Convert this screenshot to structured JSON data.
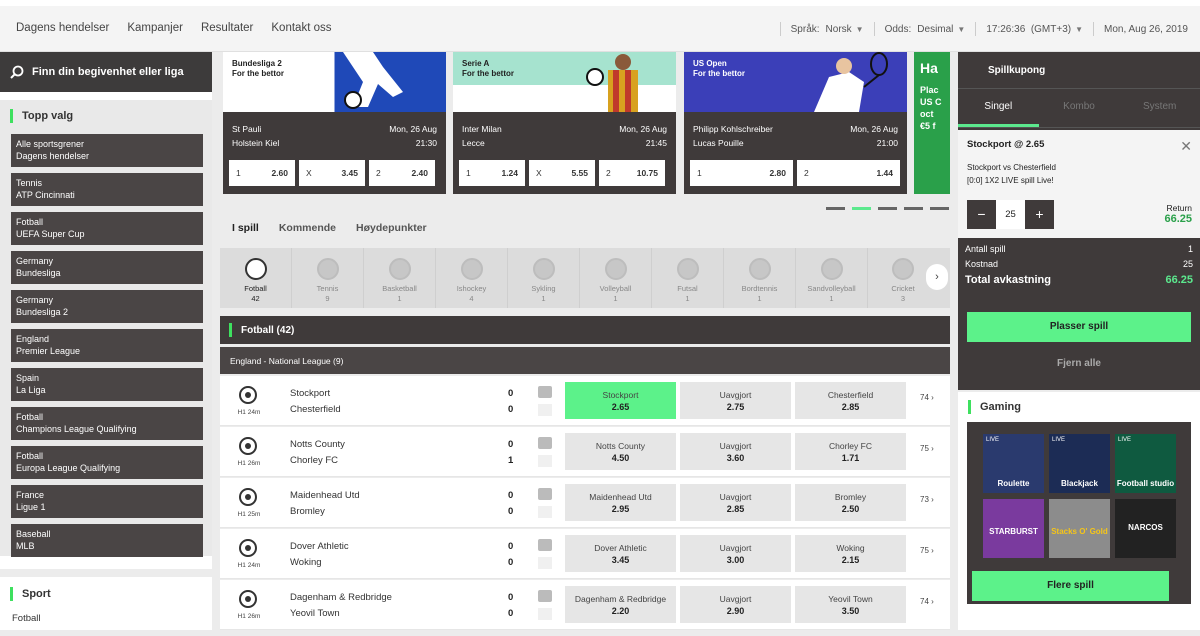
{
  "topnav": {
    "items": [
      "Dagens hendelser",
      "Kampanjer",
      "Resultater",
      "Kontakt oss"
    ]
  },
  "topright": {
    "lang_label": "Språk:",
    "lang_value": "Norsk",
    "odds_label": "Odds:",
    "odds_value": "Desimal",
    "time": "17:26:36",
    "tz": "(GMT+3)",
    "date": "Mon, Aug 26, 2019"
  },
  "search": {
    "label": "Finn din begivenhet eller liga"
  },
  "topp_valg": {
    "title": "Topp valg",
    "items": [
      [
        "Alle sportsgrener",
        "Dagens hendelser"
      ],
      [
        "Tennis",
        "ATP Cincinnati"
      ],
      [
        "Fotball",
        "UEFA Super Cup"
      ],
      [
        "Germany",
        "Bundesliga"
      ],
      [
        "Germany",
        "Bundesliga 2"
      ],
      [
        "England",
        "Premier League"
      ],
      [
        "Spain",
        "La Liga"
      ],
      [
        "Fotball",
        "Champions League Qualifying"
      ],
      [
        "Fotball",
        "Europa League Qualifying"
      ],
      [
        "France",
        "Ligue 1"
      ],
      [
        "Baseball",
        "MLB"
      ]
    ]
  },
  "sport_section": {
    "title": "Sport",
    "sub": "Fotball"
  },
  "cards": [
    {
      "league": "Bundesliga 2",
      "promo": "For the bettor",
      "home": "St Pauli",
      "away": "Holstein Kiel",
      "date": "Mon, 26 Aug",
      "time": "21:30",
      "odds": [
        [
          "1",
          "2.60"
        ],
        [
          "X",
          "3.45"
        ],
        [
          "2",
          "2.40"
        ]
      ],
      "bg": "#1f49b8"
    },
    {
      "league": "Serie A",
      "promo": "For the bettor",
      "home": "Inter Milan",
      "away": "Lecce",
      "date": "Mon, 26 Aug",
      "time": "21:45",
      "odds": [
        [
          "1",
          "1.24"
        ],
        [
          "X",
          "5.55"
        ],
        [
          "2",
          "10.75"
        ]
      ],
      "bg": "#a6e3cf"
    },
    {
      "league": "US Open",
      "promo": "For the bettor",
      "home": "Philipp Kohlschreiber",
      "away": "Lucas Pouille",
      "date": "Mon, 26 Aug",
      "time": "21:00",
      "odds": [
        [
          "1",
          "2.80"
        ],
        [
          "2",
          "1.44"
        ]
      ],
      "bg": "#3b3fb8"
    }
  ],
  "card5": {
    "text": "Ha",
    "lines": [
      "Plac",
      "US C",
      "oct",
      "€5 f"
    ]
  },
  "tabs": [
    "I spill",
    "Kommende",
    "Høydepunkter"
  ],
  "sports": [
    {
      "name": "Fotball",
      "count": "42"
    },
    {
      "name": "Tennis",
      "count": "9"
    },
    {
      "name": "Basketball",
      "count": "1"
    },
    {
      "name": "Ishockey",
      "count": "4"
    },
    {
      "name": "Sykling",
      "count": "1"
    },
    {
      "name": "Volleyball",
      "count": "1"
    },
    {
      "name": "Futsal",
      "count": "1"
    },
    {
      "name": "Bordtennis",
      "count": "1"
    },
    {
      "name": "Sandvolleyball",
      "count": "1"
    },
    {
      "name": "Cricket",
      "count": "3"
    }
  ],
  "football_header": "Fotball  (42)",
  "league_header": "England - National League (9)",
  "matches": [
    {
      "time": "H1 24m",
      "home": "Stockport",
      "away": "Chesterfield",
      "s1": "0",
      "s2": "0",
      "o1": [
        "Stockport",
        "2.65"
      ],
      "ox": [
        "Uavgjort",
        "2.75"
      ],
      "o2": [
        "Chesterfield",
        "2.85"
      ],
      "more": "74 ›",
      "selected": true
    },
    {
      "time": "H1 26m",
      "home": "Notts County",
      "away": "Chorley FC",
      "s1": "0",
      "s2": "1",
      "o1": [
        "Notts County",
        "4.50"
      ],
      "ox": [
        "Uavgjort",
        "3.60"
      ],
      "o2": [
        "Chorley FC",
        "1.71"
      ],
      "more": "75 ›"
    },
    {
      "time": "H1 25m",
      "home": "Maidenhead Utd",
      "away": "Bromley",
      "s1": "0",
      "s2": "0",
      "o1": [
        "Maidenhead Utd",
        "2.95"
      ],
      "ox": [
        "Uavgjort",
        "2.85"
      ],
      "o2": [
        "Bromley",
        "2.50"
      ],
      "more": "73 ›"
    },
    {
      "time": "H1 24m",
      "home": "Dover Athletic",
      "away": "Woking",
      "s1": "0",
      "s2": "0",
      "o1": [
        "Dover Athletic",
        "3.45"
      ],
      "ox": [
        "Uavgjort",
        "3.00"
      ],
      "o2": [
        "Woking",
        "2.15"
      ],
      "more": "75 ›"
    },
    {
      "time": "H1 26m",
      "home": "Dagenham & Redbridge",
      "away": "Yeovil Town",
      "s1": "0",
      "s2": "0",
      "o1": [
        "Dagenham & Redbridge",
        "2.20"
      ],
      "ox": [
        "Uavgjort",
        "2.90"
      ],
      "o2": [
        "Yeovil Town",
        "3.50"
      ],
      "more": "74 ›"
    }
  ],
  "coupon": {
    "title": "Spillkupong",
    "tabs": [
      "Singel",
      "Kombo",
      "System"
    ],
    "bet_title": "Stockport @ 2.65",
    "bet_match": "Stockport  vs  Chesterfield",
    "bet_market": "[0:0]  1X2 LIVE spill Live!",
    "stake": "25",
    "return_label": "Return",
    "return_value": "66.25",
    "antall_label": "Antall spill",
    "antall_value": "1",
    "kostnad_label": "Kostnad",
    "kostnad_value": "25",
    "total_label": "Total avkastning",
    "total_value": "66.25",
    "place": "Plasser spill",
    "remove": "Fjern alle"
  },
  "gaming": {
    "title": "Gaming",
    "games": [
      {
        "name": "Roulette",
        "live": "LIVE",
        "bg": "#2a3a6e"
      },
      {
        "name": "Blackjack",
        "live": "LIVE",
        "bg": "#1c2c55"
      },
      {
        "name": "Football studio",
        "live": "LIVE",
        "bg": "#0f5a40"
      },
      {
        "name": "STARBURST",
        "live": "",
        "bg": "#7a3a9e"
      },
      {
        "name": "Stacks O' Gold",
        "live": "",
        "bg": "#8c8c8c"
      },
      {
        "name": "NARCOS",
        "live": "",
        "bg": "#222"
      }
    ],
    "button": "Flere spill"
  }
}
